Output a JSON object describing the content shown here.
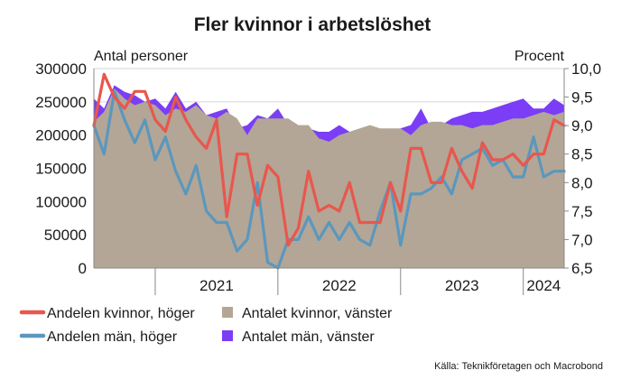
{
  "colors": {
    "background": "#ffffff",
    "women_count_area": "#b3a696",
    "men_count_area": "#7b3df5",
    "women_share_line": "#e8574d",
    "men_share_line": "#5b97bd",
    "grid": "#d6d6d6",
    "axis": "#888888",
    "text": "#1a1a1a"
  },
  "chart_data": {
    "type": "area",
    "title": "Fler kvinnor i arbetslöshet",
    "left_axis_label": "Antal personer",
    "right_axis_label": "Procent",
    "left_ylim": [
      0,
      300000
    ],
    "left_ticks": [
      "0",
      "50000",
      "100000",
      "150000",
      "200000",
      "250000",
      "300000"
    ],
    "left_tick_values": [
      0,
      50000,
      100000,
      150000,
      200000,
      250000,
      300000
    ],
    "right_ylim": [
      6.5,
      10.0
    ],
    "right_ticks": [
      "6,5",
      "7,0",
      "7,5",
      "8,0",
      "8,5",
      "9,0",
      "9,5",
      "10,0"
    ],
    "right_tick_values": [
      6.5,
      7.0,
      7.5,
      8.0,
      8.5,
      9.0,
      9.5,
      10.0
    ],
    "x_start": "2020-07",
    "x_end": "2024-05",
    "x_year_labels": [
      {
        "label": "2021",
        "year": 2021
      },
      {
        "label": "2022",
        "year": 2022
      },
      {
        "label": "2023",
        "year": 2023
      },
      {
        "label": "2024",
        "year": 2024
      }
    ],
    "months": [
      "2020-07",
      "2020-08",
      "2020-09",
      "2020-10",
      "2020-11",
      "2020-12",
      "2021-01",
      "2021-02",
      "2021-03",
      "2021-04",
      "2021-05",
      "2021-06",
      "2021-07",
      "2021-08",
      "2021-09",
      "2021-10",
      "2021-11",
      "2021-12",
      "2022-01",
      "2022-02",
      "2022-03",
      "2022-04",
      "2022-05",
      "2022-06",
      "2022-07",
      "2022-08",
      "2022-09",
      "2022-10",
      "2022-11",
      "2022-12",
      "2023-01",
      "2023-02",
      "2023-03",
      "2023-04",
      "2023-05",
      "2023-06",
      "2023-07",
      "2023-08",
      "2023-09",
      "2023-10",
      "2023-11",
      "2023-12",
      "2024-01",
      "2024-02",
      "2024-03",
      "2024-04",
      "2024-05"
    ],
    "series": [
      {
        "name": "Antalet kvinnor, vänster",
        "kind": "area",
        "axis": "left",
        "values": [
          220000,
          235000,
          270000,
          255000,
          245000,
          250000,
          245000,
          230000,
          240000,
          235000,
          245000,
          230000,
          225000,
          235000,
          225000,
          200000,
          225000,
          225000,
          225000,
          225000,
          215000,
          215000,
          195000,
          190000,
          200000,
          205000,
          210000,
          215000,
          210000,
          210000,
          210000,
          200000,
          215000,
          220000,
          220000,
          215000,
          215000,
          210000,
          215000,
          215000,
          220000,
          225000,
          225000,
          230000,
          235000,
          230000,
          235000
        ]
      },
      {
        "name": "Antalet män, vänster",
        "kind": "area",
        "axis": "left",
        "values": [
          255000,
          240000,
          275000,
          265000,
          260000,
          250000,
          255000,
          240000,
          265000,
          240000,
          250000,
          230000,
          235000,
          240000,
          210000,
          215000,
          230000,
          225000,
          240000,
          215000,
          200000,
          210000,
          205000,
          205000,
          215000,
          205000,
          205000,
          210000,
          205000,
          205000,
          210000,
          215000,
          240000,
          210000,
          215000,
          225000,
          230000,
          235000,
          235000,
          240000,
          245000,
          250000,
          255000,
          240000,
          240000,
          255000,
          245000
        ]
      },
      {
        "name": "Andelen kvinnor, höger",
        "kind": "line",
        "axis": "right",
        "values": [
          9.0,
          9.9,
          9.5,
          9.3,
          9.6,
          9.6,
          9.1,
          8.9,
          9.5,
          9.1,
          8.8,
          8.6,
          9.1,
          7.4,
          8.5,
          8.5,
          7.6,
          8.3,
          8.1,
          6.9,
          7.2,
          8.2,
          7.5,
          7.6,
          7.5,
          8.0,
          7.3,
          7.3,
          7.3,
          8.0,
          7.5,
          8.6,
          8.6,
          8.0,
          8.0,
          8.6,
          8.2,
          7.9,
          8.7,
          8.4,
          8.4,
          8.5,
          8.3,
          8.5,
          8.5,
          9.1,
          9.0
        ]
      },
      {
        "name": "Andelen män, höger",
        "kind": "line",
        "axis": "right",
        "values": [
          9.0,
          8.5,
          9.6,
          9.1,
          8.7,
          9.1,
          8.4,
          8.8,
          8.2,
          7.8,
          8.3,
          7.5,
          7.3,
          7.3,
          6.8,
          7.0,
          8.0,
          6.6,
          6.5,
          7.0,
          7.0,
          7.4,
          7.0,
          7.3,
          7.0,
          7.3,
          7.0,
          6.9,
          7.5,
          8.0,
          6.9,
          7.8,
          7.8,
          7.9,
          8.1,
          7.8,
          8.4,
          8.5,
          8.6,
          8.3,
          8.4,
          8.1,
          8.1,
          8.8,
          8.1,
          8.2,
          8.2
        ]
      }
    ],
    "legend": [
      {
        "label": "Andelen kvinnor, höger",
        "kind": "line",
        "color": "#e8574d"
      },
      {
        "label": "Antalet kvinnor, vänster",
        "kind": "area",
        "color": "#b3a696"
      },
      {
        "label": "Andelen män, höger",
        "kind": "line",
        "color": "#5b97bd"
      },
      {
        "label": "Antalet män, vänster",
        "kind": "area",
        "color": "#7b3df5"
      }
    ],
    "legend_placement": "bottom",
    "grid": true,
    "source": "Källa: Teknikföretagen och Macrobond"
  }
}
